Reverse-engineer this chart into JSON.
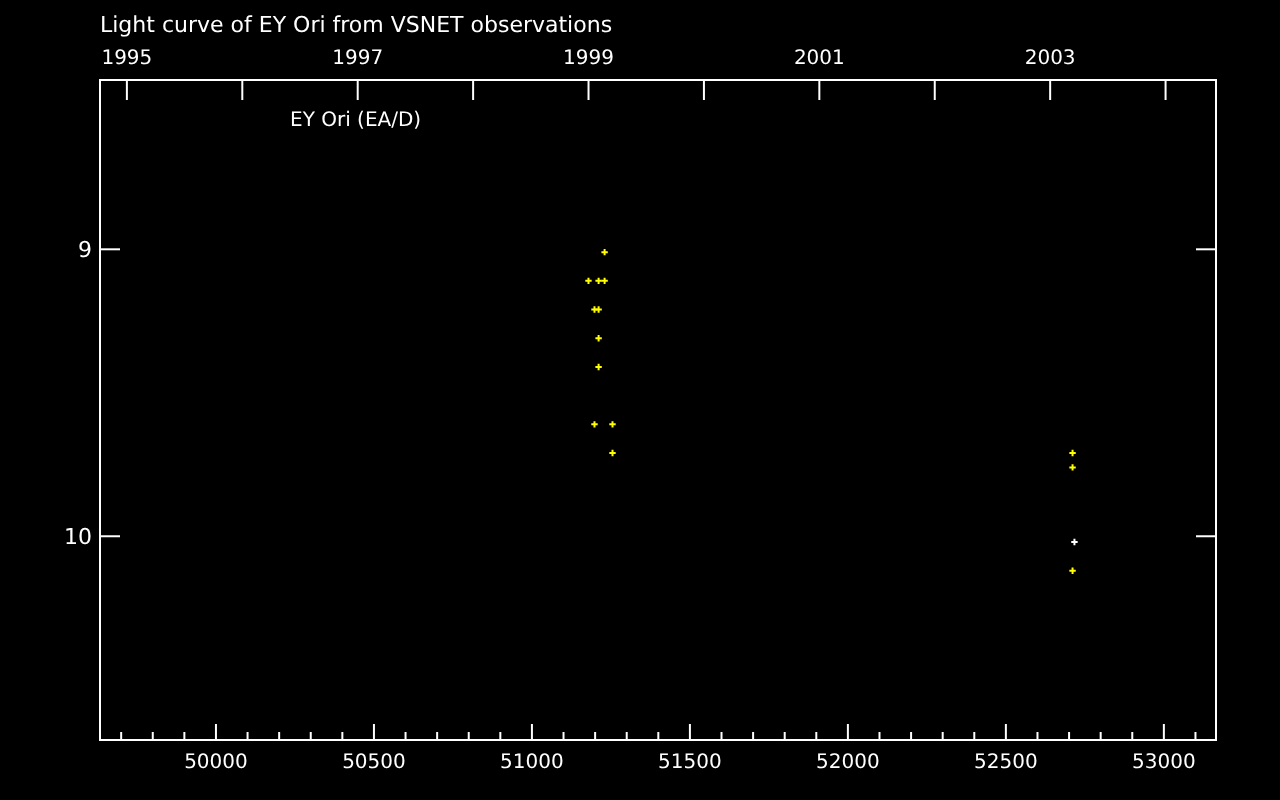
{
  "chart_data": {
    "type": "scatter",
    "title": "Light curve of EY Ori from VSNET observations",
    "annotations": [
      "EY Ori (EA/D)"
    ],
    "series": [
      {
        "color": "#ffff00",
        "x": [
          51230,
          51179,
          51211,
          51230,
          51198,
          51211,
          51211,
          51211,
          51198,
          51255,
          51255,
          52711,
          52711,
          52711
        ],
        "values": [
          9.01,
          9.11,
          9.11,
          9.11,
          9.21,
          9.21,
          9.31,
          9.41,
          9.61,
          9.61,
          9.71,
          9.71,
          9.76,
          10.12
        ]
      },
      {
        "color": "#ffffff",
        "x": [
          52717
        ],
        "values": [
          10.02
        ]
      }
    ],
    "marker": "cross",
    "grid": false,
    "xlim": [
      49633,
      53165
    ],
    "xticks": [
      {
        "value": 49700,
        "label": null
      },
      {
        "value": 49800,
        "label": null
      },
      {
        "value": 49900,
        "label": null
      },
      50000,
      {
        "value": 50100,
        "label": null
      },
      {
        "value": 50200,
        "label": null
      },
      {
        "value": 50300,
        "label": null
      },
      {
        "value": 50400,
        "label": null
      },
      50500,
      {
        "value": 50600,
        "label": null
      },
      {
        "value": 50700,
        "label": null
      },
      {
        "value": 50800,
        "label": null
      },
      {
        "value": 50900,
        "label": null
      },
      51000,
      {
        "value": 51100,
        "label": null
      },
      {
        "value": 51200,
        "label": null
      },
      {
        "value": 51300,
        "label": null
      },
      {
        "value": 51400,
        "label": null
      },
      51500,
      {
        "value": 51600,
        "label": null
      },
      {
        "value": 51700,
        "label": null
      },
      {
        "value": 51800,
        "label": null
      },
      {
        "value": 51900,
        "label": null
      },
      52000,
      {
        "value": 52100,
        "label": null
      },
      {
        "value": 52200,
        "label": null
      },
      {
        "value": 52300,
        "label": null
      },
      {
        "value": 52400,
        "label": null
      },
      52500,
      {
        "value": 52600,
        "label": null
      },
      {
        "value": 52700,
        "label": null
      },
      {
        "value": 52800,
        "label": null
      },
      {
        "value": 52900,
        "label": null
      },
      53000,
      {
        "value": 53100,
        "label": null
      }
    ],
    "x2lim": [
      1994.767,
      2004.437
    ],
    "x2ticks": [
      1995,
      {
        "value": 1996,
        "label": null
      },
      1997,
      {
        "value": 1998,
        "label": null
      },
      1999,
      {
        "value": 2000,
        "label": null
      },
      2001,
      {
        "value": 2002,
        "label": null
      },
      2003,
      {
        "value": 2004,
        "label": null
      }
    ],
    "ylim": [
      10.71,
      8.41
    ],
    "yticks": [
      9,
      10
    ]
  }
}
